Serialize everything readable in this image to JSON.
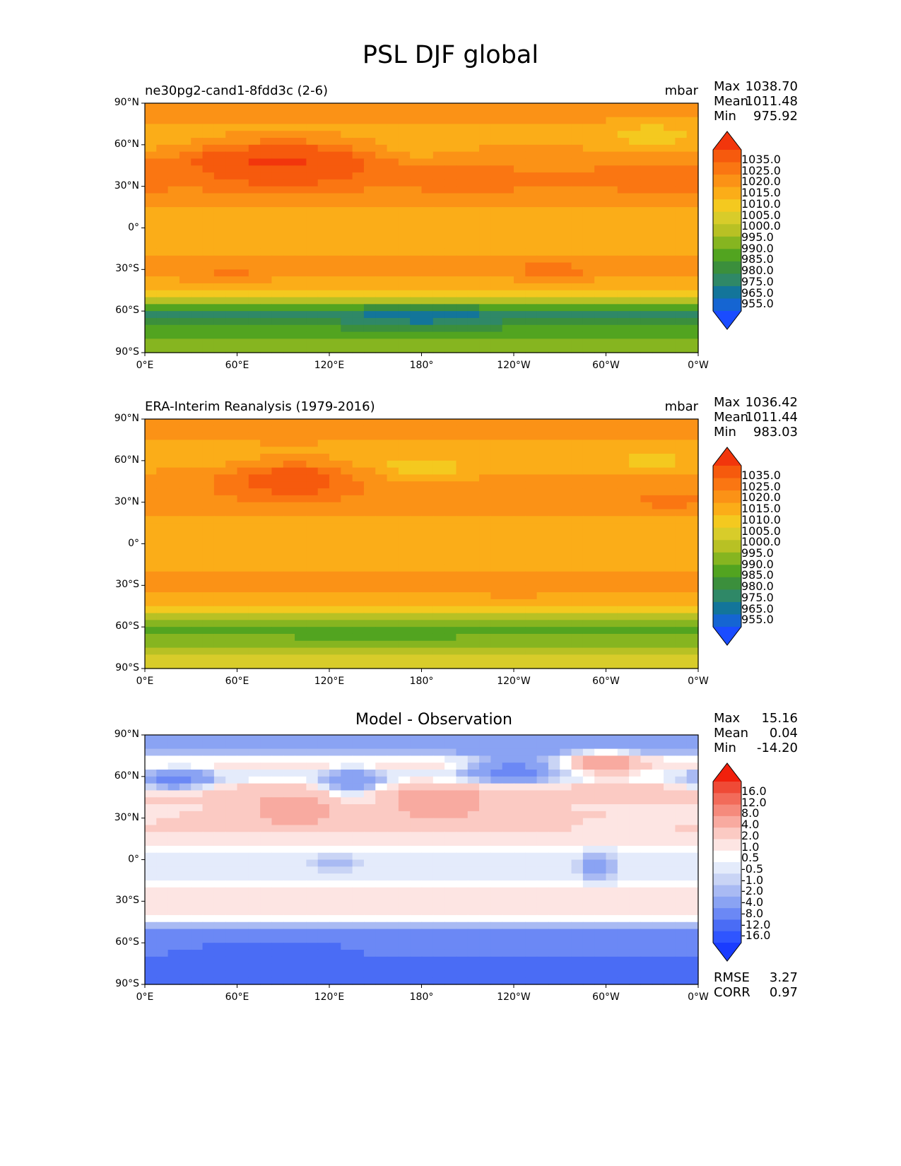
{
  "figure": {
    "title": "PSL DJF global"
  },
  "axis_ticks": {
    "y": [
      "90°N",
      "60°N",
      "30°N",
      "0°",
      "30°S",
      "60°S",
      "90°S"
    ],
    "x": [
      "0°E",
      "60°E",
      "120°E",
      "180°",
      "120°W",
      "60°W",
      "0°W"
    ]
  },
  "colors": {
    "abs_levels": [
      "#1a4cff",
      "#1565d2",
      "#13759a",
      "#2f8867",
      "#3b8f3c",
      "#52a420",
      "#86b520",
      "#b8c124",
      "#d8cc2a",
      "#f4c91f",
      "#fbad18",
      "#fb9216",
      "#fa7612",
      "#f65a0d",
      "#f2360c"
    ],
    "diff_levels": [
      "#1a3cff",
      "#2f55ff",
      "#4a6cf5",
      "#6b88f5",
      "#8aa3f3",
      "#a9baf3",
      "#c9d4f5",
      "#e4ebfb",
      "#ffffff",
      "#fde5e3",
      "#fbcac3",
      "#f8aaa0",
      "#f58a7c",
      "#f26b5a",
      "#ef4a36",
      "#f1200c"
    ]
  },
  "chart_data": [
    {
      "type": "heatmap",
      "panel": "test",
      "title": "ne30pg2-cand1-8fdd3c (2-6)",
      "units": "mbar",
      "stats": {
        "max_label": "Max",
        "max": "1038.70",
        "mean_label": "Mean",
        "mean": "1011.48",
        "min_label": "Min",
        "min": "975.92"
      },
      "colorbar_ticks": [
        "1035.0",
        "1025.0",
        "1020.0",
        "1015.0",
        "1010.0",
        "1005.0",
        "1000.0",
        "995.0",
        "990.0",
        "985.0",
        "980.0",
        "975.0",
        "965.0",
        "955.0"
      ],
      "xlim": [
        0,
        360
      ],
      "ylim": [
        -90,
        90
      ],
      "lat_profile": [
        [
          -90,
          990
        ],
        [
          -80,
          992
        ],
        [
          -70,
          984
        ],
        [
          -62,
          978
        ],
        [
          -55,
          992
        ],
        [
          -48,
          1006
        ],
        [
          -40,
          1013
        ],
        [
          -32,
          1018
        ],
        [
          -22,
          1016
        ],
        [
          -10,
          1011
        ],
        [
          0,
          1010
        ],
        [
          10,
          1013
        ],
        [
          20,
          1017
        ],
        [
          30,
          1020
        ],
        [
          40,
          1020
        ],
        [
          50,
          1019
        ],
        [
          60,
          1014
        ],
        [
          70,
          1013
        ],
        [
          80,
          1016
        ],
        [
          90,
          1017
        ]
      ],
      "anomalies": [
        {
          "lon": 95,
          "lat": 48,
          "rlon": 45,
          "rlat": 15,
          "amp": 16
        },
        {
          "lon": 55,
          "lat": 48,
          "rlon": 30,
          "rlat": 12,
          "amp": 6
        },
        {
          "lon": 210,
          "lat": 33,
          "rlon": 25,
          "rlat": 8,
          "amp": 5
        },
        {
          "lon": 340,
          "lat": 35,
          "rlon": 30,
          "rlat": 9,
          "amp": 5
        },
        {
          "lon": 265,
          "lat": -30,
          "rlon": 25,
          "rlat": 7,
          "amp": 5
        },
        {
          "lon": 55,
          "lat": -30,
          "rlon": 35,
          "rlat": 7,
          "amp": 3
        },
        {
          "lon": 180,
          "lat": -65,
          "rlon": 45,
          "rlat": 10,
          "amp": -8
        },
        {
          "lon": 330,
          "lat": 65,
          "rlon": 25,
          "rlat": 10,
          "amp": -7
        },
        {
          "lon": 180,
          "lat": 55,
          "rlon": 25,
          "rlat": 7,
          "amp": -4
        }
      ]
    },
    {
      "type": "heatmap",
      "panel": "reference",
      "title": "ERA-Interim Reanalysis (1979-2016)",
      "units": "mbar",
      "stats": {
        "max_label": "Max",
        "max": "1036.42",
        "mean_label": "Mean",
        "mean": "1011.44",
        "min_label": "Min",
        "min": "983.03"
      },
      "colorbar_ticks": [
        "1035.0",
        "1025.0",
        "1020.0",
        "1015.0",
        "1010.0",
        "1005.0",
        "1000.0",
        "995.0",
        "990.0",
        "985.0",
        "980.0",
        "975.0",
        "965.0",
        "955.0"
      ],
      "xlim": [
        0,
        360
      ],
      "ylim": [
        -90,
        90
      ],
      "lat_profile": [
        [
          -90,
          1002
        ],
        [
          -80,
          1000
        ],
        [
          -70,
          992
        ],
        [
          -62,
          987
        ],
        [
          -55,
          993
        ],
        [
          -48,
          1006
        ],
        [
          -40,
          1013
        ],
        [
          -32,
          1016
        ],
        [
          -22,
          1015
        ],
        [
          -10,
          1011
        ],
        [
          0,
          1010
        ],
        [
          10,
          1013
        ],
        [
          20,
          1015
        ],
        [
          30,
          1018
        ],
        [
          40,
          1018
        ],
        [
          50,
          1016
        ],
        [
          60,
          1012
        ],
        [
          70,
          1014
        ],
        [
          80,
          1017
        ],
        [
          90,
          1017
        ]
      ],
      "anomalies": [
        {
          "lon": 95,
          "lat": 47,
          "rlon": 40,
          "rlat": 13,
          "amp": 14
        },
        {
          "lon": 180,
          "lat": 52,
          "rlon": 28,
          "rlat": 8,
          "amp": -9
        },
        {
          "lon": 330,
          "lat": 60,
          "rlon": 20,
          "rlat": 8,
          "amp": -5
        },
        {
          "lon": 340,
          "lat": 30,
          "rlon": 25,
          "rlat": 7,
          "amp": 4
        },
        {
          "lon": 240,
          "lat": -32,
          "rlon": 25,
          "rlat": 6,
          "amp": 4
        },
        {
          "lon": 150,
          "lat": -68,
          "rlon": 40,
          "rlat": 8,
          "amp": -3
        }
      ]
    },
    {
      "type": "heatmap",
      "panel": "difference",
      "title": "Model - Observation",
      "units": "",
      "stats": {
        "max_label": "Max",
        "max": "15.16",
        "mean_label": "Mean",
        "mean": "0.04",
        "min_label": "Min",
        "min": "-14.20"
      },
      "metrics": {
        "rmse_label": "RMSE",
        "rmse": "3.27",
        "corr_label": "CORR",
        "corr": "0.97"
      },
      "colorbar_ticks": [
        "16.0",
        "12.0",
        "8.0",
        "4.0",
        "2.0",
        "1.0",
        "0.5",
        "-0.5",
        "-1.0",
        "-2.0",
        "-4.0",
        "-8.0",
        "-12.0",
        "-16.0"
      ],
      "xlim": [
        0,
        360
      ],
      "ylim": [
        -90,
        90
      ],
      "lat_profile": [
        [
          -90,
          -9
        ],
        [
          -80,
          -10
        ],
        [
          -70,
          -8
        ],
        [
          -60,
          -7
        ],
        [
          -52,
          -4
        ],
        [
          -45,
          0
        ],
        [
          -40,
          2
        ],
        [
          -30,
          2
        ],
        [
          -20,
          1
        ],
        [
          -10,
          0
        ],
        [
          0,
          0
        ],
        [
          10,
          1
        ],
        [
          20,
          2
        ],
        [
          30,
          2
        ],
        [
          40,
          2
        ],
        [
          50,
          3
        ],
        [
          60,
          0
        ],
        [
          70,
          2
        ],
        [
          80,
          -3
        ],
        [
          90,
          -3
        ]
      ],
      "anomalies": [
        {
          "lon": 20,
          "lat": 57,
          "rlon": 25,
          "rlat": 8,
          "amp": -6
        },
        {
          "lon": 135,
          "lat": 55,
          "rlon": 20,
          "rlat": 10,
          "amp": -5
        },
        {
          "lon": 240,
          "lat": 65,
          "rlon": 30,
          "rlat": 10,
          "amp": -6
        },
        {
          "lon": 95,
          "lat": 35,
          "rlon": 25,
          "rlat": 10,
          "amp": 5
        },
        {
          "lon": 190,
          "lat": 40,
          "rlon": 30,
          "rlat": 12,
          "amp": 4
        },
        {
          "lon": 300,
          "lat": 70,
          "rlon": 20,
          "rlat": 8,
          "amp": 6
        },
        {
          "lon": 125,
          "lat": -2,
          "rlon": 15,
          "rlat": 6,
          "amp": -2
        },
        {
          "lon": 295,
          "lat": -5,
          "rlon": 12,
          "rlat": 10,
          "amp": -3
        },
        {
          "lon": 80,
          "lat": -65,
          "rlon": 40,
          "rlat": 8,
          "amp": -3
        }
      ]
    }
  ]
}
